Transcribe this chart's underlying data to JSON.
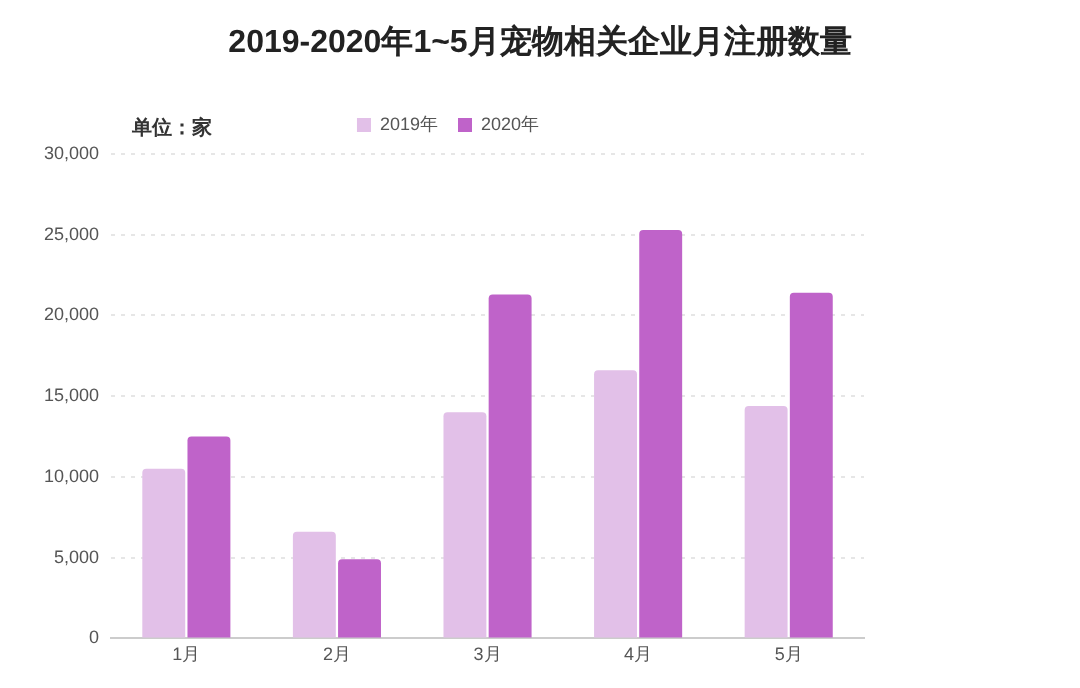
{
  "chart_data": {
    "type": "bar",
    "title": "2019-2020年1~5月宠物相关企业月注册数量",
    "ylabel": "单位：家",
    "categories": [
      "1月",
      "2月",
      "3月",
      "4月",
      "5月"
    ],
    "series": [
      {
        "name": "2019年",
        "color": "#e2c0e8",
        "values": [
          10500,
          6600,
          14000,
          16600,
          14400
        ]
      },
      {
        "name": "2020年",
        "color": "#bf63c9",
        "values": [
          12500,
          4900,
          21300,
          25300,
          21400
        ]
      }
    ],
    "ylim": [
      0,
      30000
    ],
    "yticks": [
      0,
      {
        "value": 5000,
        "label": "5,000"
      },
      {
        "value": 10000,
        "label": "10,000"
      },
      {
        "value": 15000,
        "label": "15,000"
      },
      {
        "value": 20000,
        "label": "20,000"
      },
      {
        "value": 25000,
        "label": "25,000"
      },
      {
        "value": 30000,
        "label": "30,000"
      }
    ],
    "grid": "y",
    "legend": "top"
  }
}
